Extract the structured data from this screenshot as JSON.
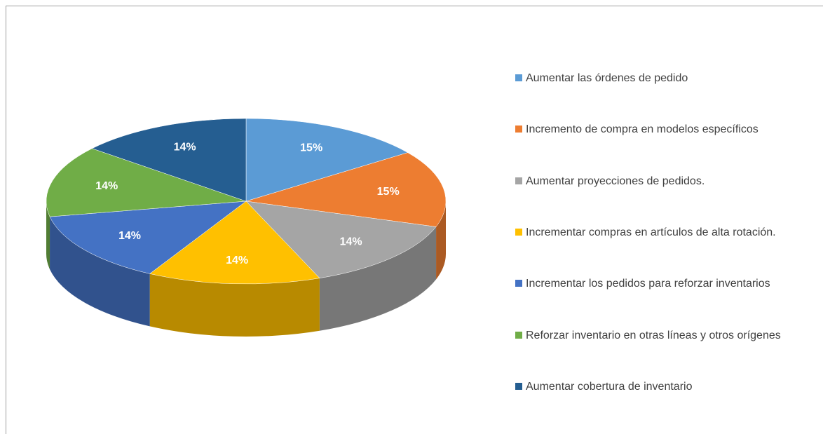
{
  "chart_data": {
    "type": "pie",
    "categories": [
      "Aumentar las órdenes de pedido",
      "Incremento de compra en modelos específicos",
      "Aumentar proyecciones de pedidos.",
      "Incrementar compras en artículos de alta rotación.",
      "Incrementar los pedidos para reforzar inventarios",
      "Reforzar inventario en otras líneas y otros orígenes",
      "Aumentar cobertura de inventario"
    ],
    "values": [
      15,
      15,
      14,
      14,
      14,
      14,
      14
    ],
    "value_labels": [
      "15%",
      "15%",
      "14%",
      "14%",
      "14%",
      "14%",
      "14%"
    ],
    "colors": [
      "#5b9bd5",
      "#ed7d31",
      "#a5a5a5",
      "#ffc000",
      "#4472c4",
      "#70ad47",
      "#255e91"
    ],
    "legend": "right"
  }
}
